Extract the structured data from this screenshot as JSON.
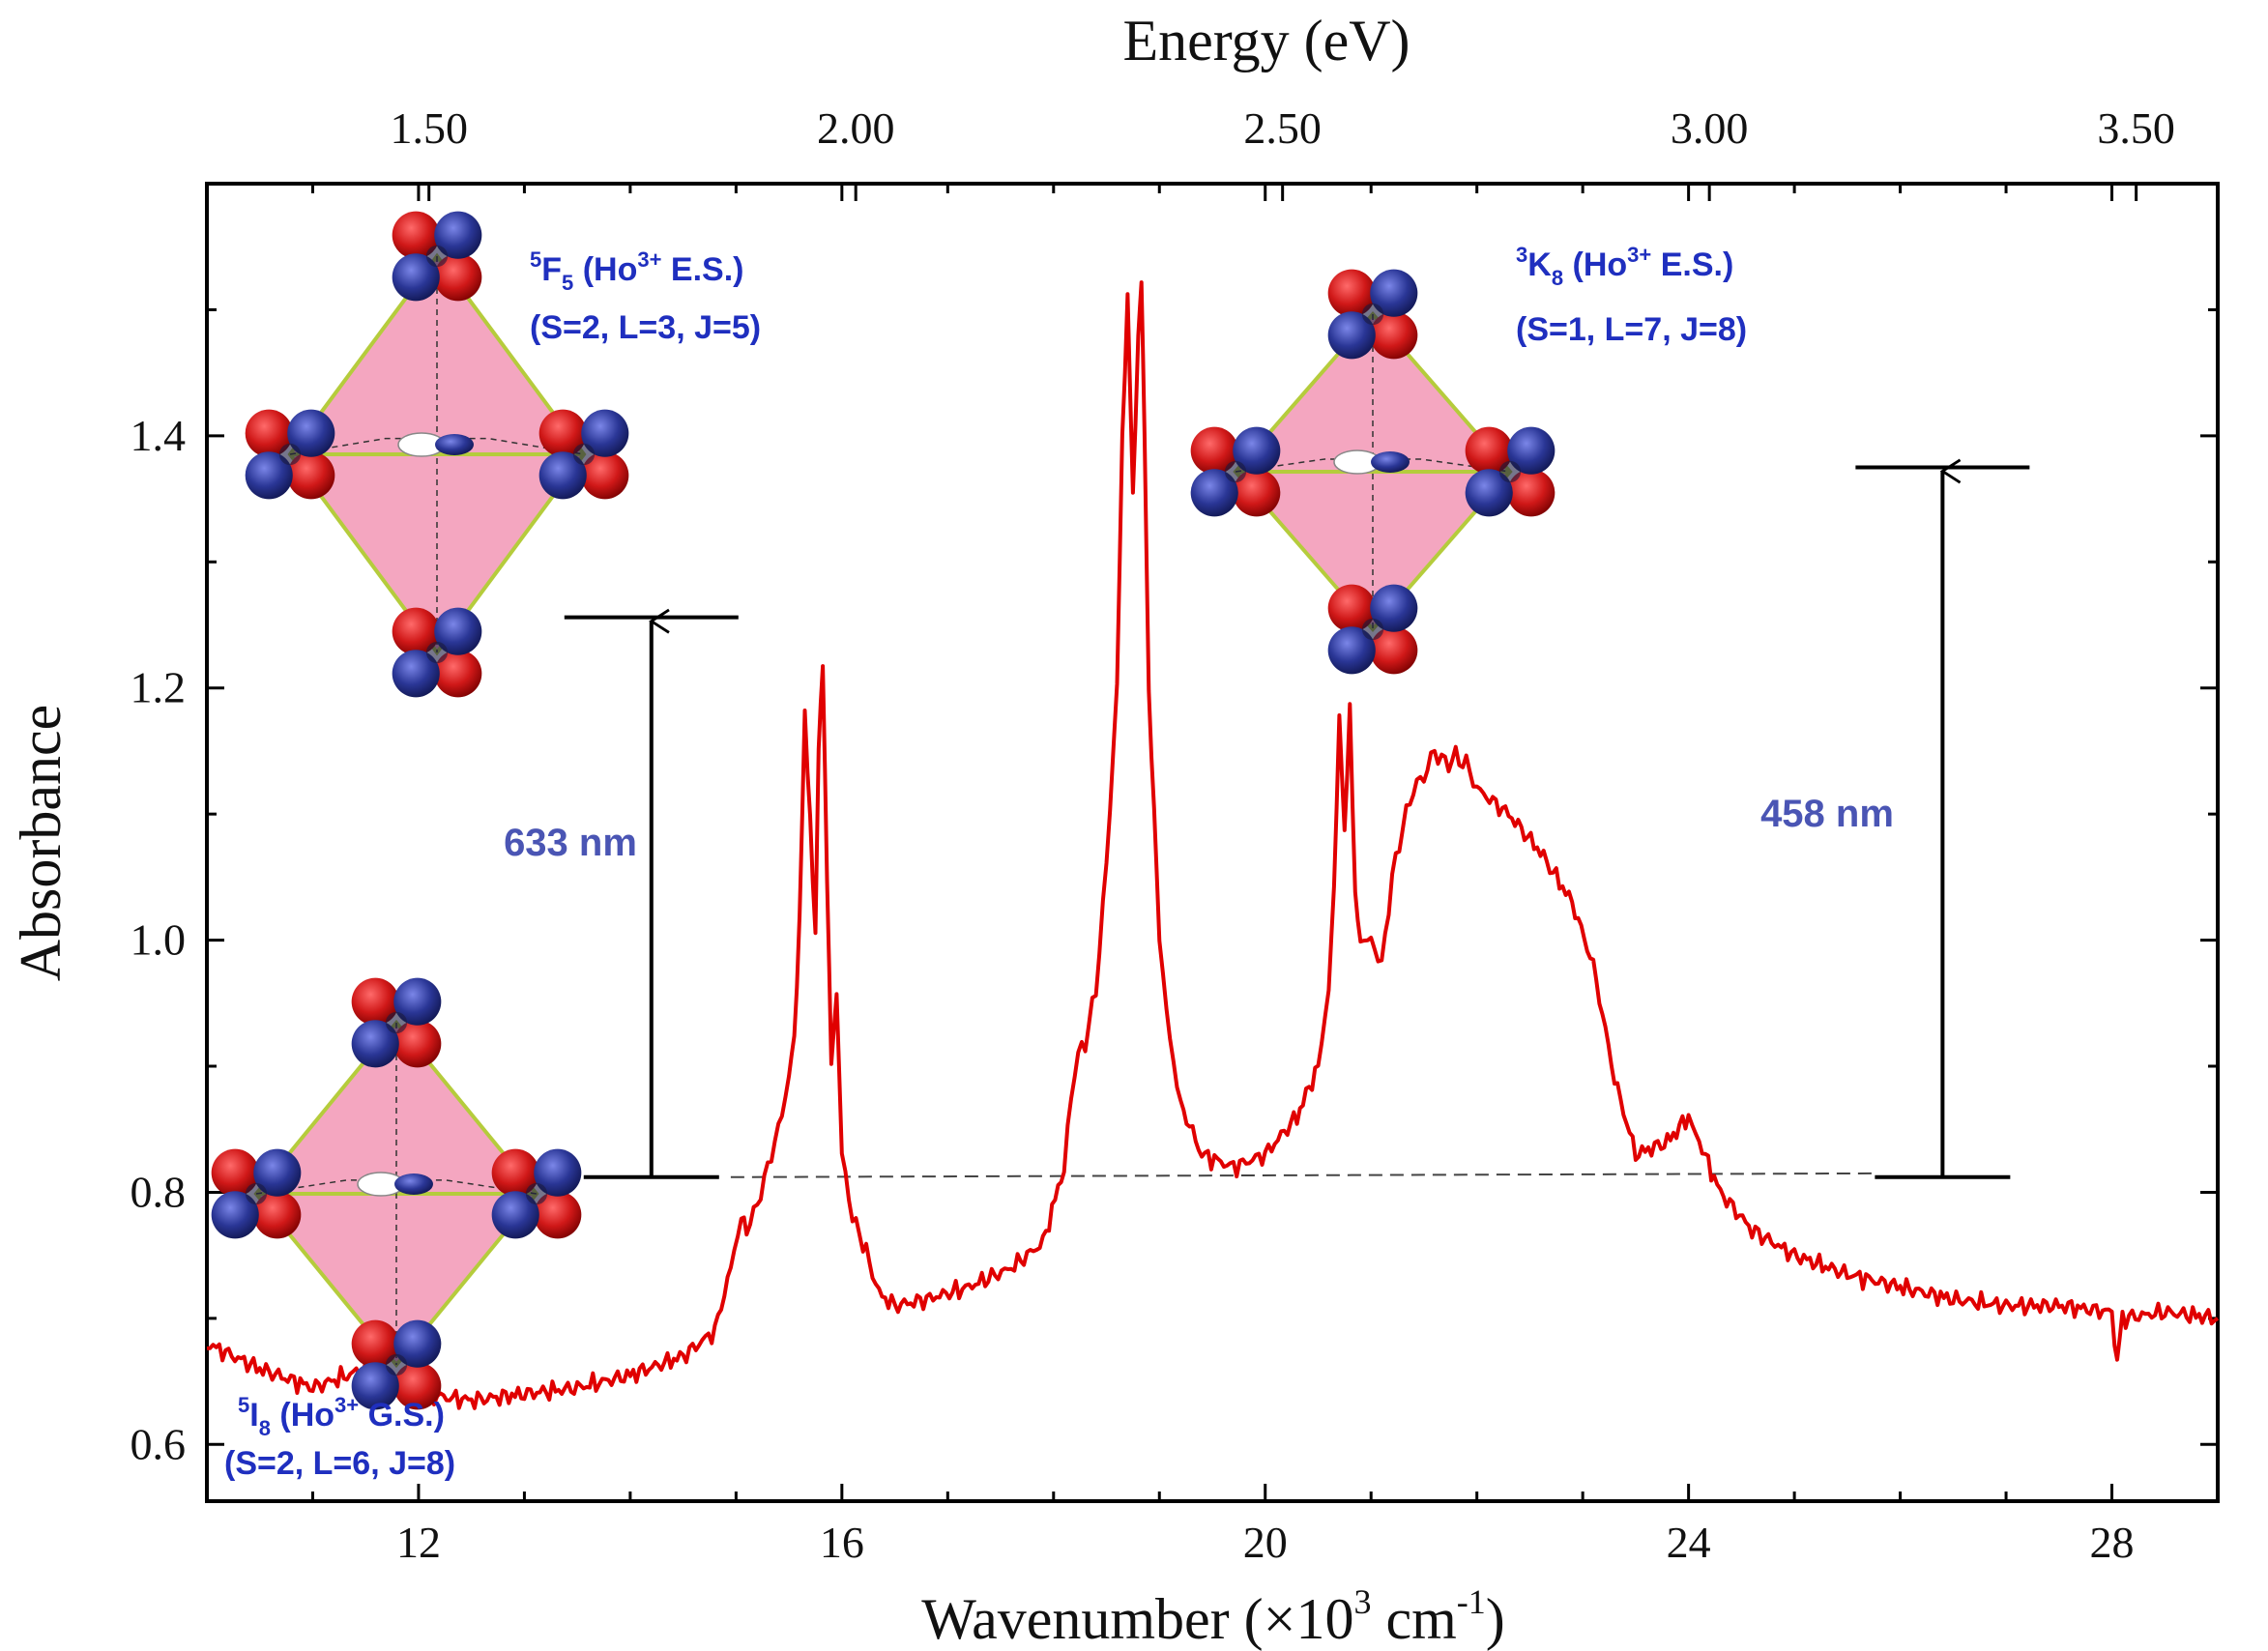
{
  "chart_data": {
    "type": "line",
    "xlabel": "Wavenumber (×10",
    "xlabel_exp": "3",
    "xlabel_unit": " cm",
    "xlabel_unit_exp": "-1",
    "xlabel_close": ")",
    "ylabel": "Absorbance",
    "top_axis_label": "Energy (eV)",
    "xlim": [
      10,
      29
    ],
    "ylim": [
      0.555,
      1.6
    ],
    "x_ticks": [
      12,
      16,
      20,
      24,
      28
    ],
    "x_tick_labels": [
      "12",
      "16",
      "20",
      "24",
      "28"
    ],
    "y_ticks": [
      0.6,
      0.8,
      1.0,
      1.2,
      1.4
    ],
    "y_tick_labels": [
      "0.6",
      "0.8",
      "1.0",
      "1.2",
      "1.4"
    ],
    "top_ticks_ev": [
      1.5,
      2.0,
      2.5,
      3.0,
      3.5
    ],
    "top_tick_labels": [
      "1.50",
      "2.00",
      "2.50",
      "3.00",
      "3.50"
    ],
    "series": [
      {
        "name": "Absorbance",
        "color": "#e00000",
        "x": [
          10.0,
          10.5,
          11.0,
          11.5,
          12.0,
          12.5,
          13.0,
          13.5,
          14.0,
          14.5,
          14.8,
          14.95,
          15.05,
          15.1,
          15.2,
          15.3,
          15.4,
          15.5,
          15.55,
          15.6,
          15.65,
          15.7,
          15.75,
          15.78,
          15.82,
          15.86,
          15.9,
          15.95,
          16.0,
          16.1,
          16.2,
          16.35,
          16.5,
          16.8,
          17.2,
          17.6,
          17.9,
          18.1,
          18.2,
          18.3,
          18.4,
          18.5,
          18.6,
          18.65,
          18.7,
          18.75,
          18.8,
          18.83,
          18.86,
          18.9,
          18.95,
          19.0,
          19.1,
          19.2,
          19.4,
          19.7,
          20.0,
          20.3,
          20.5,
          20.6,
          20.65,
          20.7,
          20.75,
          20.8,
          20.85,
          20.9,
          21.0,
          21.1,
          21.2,
          21.3,
          21.4,
          21.5,
          21.6,
          21.7,
          21.8,
          21.9,
          22.0,
          22.3,
          22.6,
          22.9,
          23.1,
          23.3,
          23.5,
          23.8,
          24.0,
          24.1,
          24.3,
          24.6,
          25.0,
          25.5,
          26.0,
          26.5,
          27.0,
          27.5,
          28.0,
          28.05,
          28.1,
          28.5,
          29.0
        ],
        "y": [
          0.68,
          0.66,
          0.645,
          0.66,
          0.64,
          0.635,
          0.64,
          0.645,
          0.655,
          0.67,
          0.69,
          0.74,
          0.78,
          0.77,
          0.79,
          0.82,
          0.85,
          0.89,
          0.92,
          1.02,
          1.175,
          1.1,
          1.0,
          1.15,
          1.225,
          1.05,
          0.9,
          0.96,
          0.83,
          0.78,
          0.76,
          0.72,
          0.71,
          0.715,
          0.725,
          0.74,
          0.76,
          0.82,
          0.9,
          0.92,
          0.96,
          1.06,
          1.2,
          1.4,
          1.51,
          1.35,
          1.48,
          1.52,
          1.4,
          1.2,
          1.1,
          1.0,
          0.92,
          0.87,
          0.83,
          0.82,
          0.83,
          0.86,
          0.9,
          0.96,
          1.04,
          1.18,
          1.08,
          1.19,
          1.03,
          1.0,
          1.0,
          0.98,
          1.05,
          1.09,
          1.12,
          1.13,
          1.15,
          1.14,
          1.145,
          1.14,
          1.12,
          1.1,
          1.07,
          1.03,
          0.98,
          0.89,
          0.83,
          0.84,
          0.86,
          0.84,
          0.8,
          0.77,
          0.75,
          0.735,
          0.725,
          0.715,
          0.71,
          0.71,
          0.705,
          0.665,
          0.7,
          0.705,
          0.7
        ]
      }
    ],
    "baseline": {
      "x1": 14.95,
      "x2": 25.8,
      "y1": 0.812,
      "y2": 0.815
    },
    "arrows": [
      {
        "label": "633 nm",
        "x": 14.2,
        "y_bottom": 0.812,
        "y_top": 1.256
      },
      {
        "label": "458 nm",
        "x": 26.4,
        "y_bottom": 0.812,
        "y_top": 1.375
      }
    ],
    "annotations": [
      {
        "term_sup": "5",
        "term_letter": "F",
        "term_sub": "5",
        "term_ion": " (Ho",
        "term_ion_sup": "3+",
        "term_state": " E.S.)",
        "qn": "(S=2, L=3, J=5)"
      },
      {
        "term_sup": "3",
        "term_letter": "K",
        "term_sub": "8",
        "term_ion": " (Ho",
        "term_ion_sup": "3+",
        "term_state": " E.S.)",
        "qn": "(S=1, L=7, J=8)"
      },
      {
        "term_sup": "5",
        "term_letter": "I",
        "term_sub": "8",
        "term_ion": " (Ho",
        "term_ion_sup": "3+",
        "term_state": " G.S.)",
        "qn": "(S=2, L=6, J=8)"
      }
    ]
  }
}
